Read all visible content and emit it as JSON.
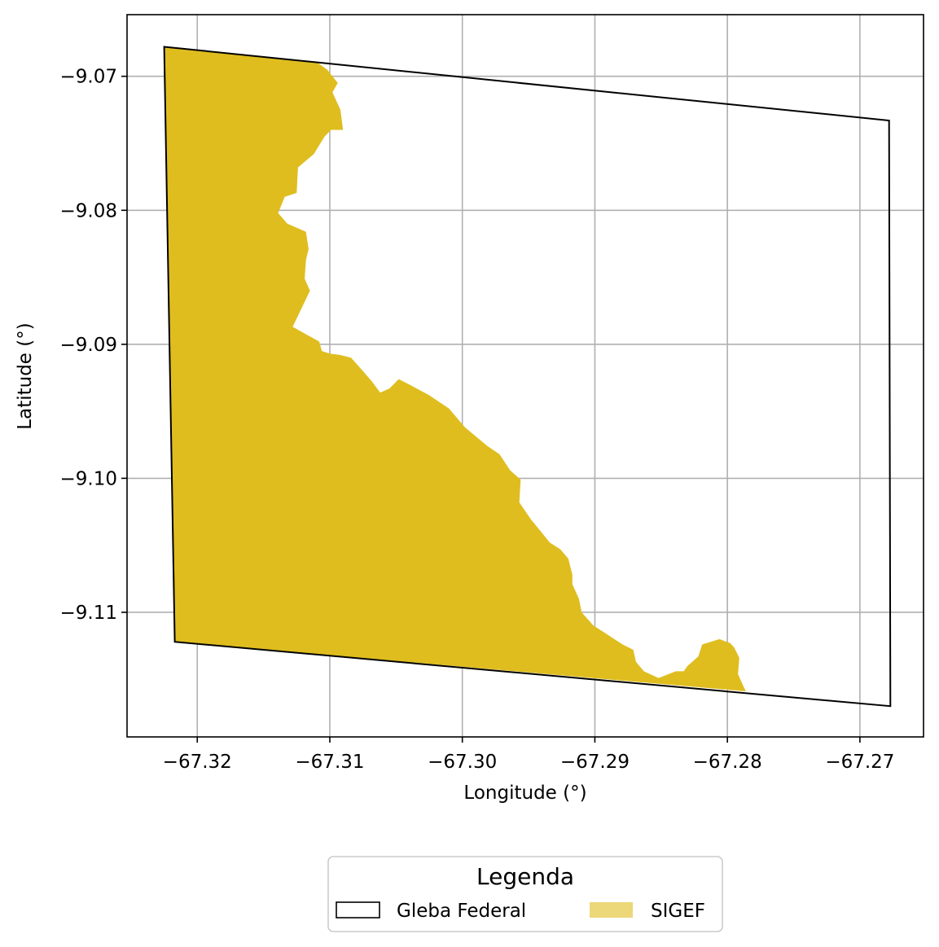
{
  "chart_data": {
    "type": "map",
    "xlabel": "Longitude (°)",
    "ylabel": "Latitude (°)",
    "xlim": [
      -67.3253,
      -67.2652
    ],
    "ylim": [
      -9.1193,
      -9.0654
    ],
    "xticks": [
      -67.32,
      -67.31,
      -67.3,
      -67.29,
      -67.28,
      -67.27
    ],
    "xtick_labels": [
      "−67.32",
      "−67.31",
      "−67.30",
      "−67.29",
      "−67.28",
      "−67.27"
    ],
    "yticks": [
      -9.07,
      -9.08,
      -9.09,
      -9.1,
      -9.11
    ],
    "ytick_labels": [
      "−9.07",
      "−9.08",
      "−9.09",
      "−9.10",
      "−9.11"
    ],
    "grid": true,
    "legend": {
      "title": "Legenda",
      "placement": "bottom-center, below plot",
      "entries": [
        {
          "label": "Gleba Federal",
          "style": "outline",
          "edge_color": "#000000"
        },
        {
          "label": "SIGEF",
          "style": "fill",
          "fill_color": "#DFBD1F"
        }
      ]
    },
    "layers": [
      {
        "name": "Gleba Federal",
        "type": "polygon",
        "edge_color": "#000000",
        "fill": "none",
        "coordinates": [
          [
            -67.3225,
            -9.0678
          ],
          [
            -67.2678,
            -9.0733
          ],
          [
            -67.2677,
            -9.117
          ],
          [
            -67.3217,
            -9.1122
          ]
        ]
      },
      {
        "name": "SIGEF",
        "type": "polygon",
        "fill_color": "#DFBD1F",
        "coordinates": [
          [
            -67.3225,
            -9.0678
          ],
          [
            -67.3109,
            -9.069
          ],
          [
            -67.3102,
            -9.0695
          ],
          [
            -67.3094,
            -9.0705
          ],
          [
            -67.3098,
            -9.0712
          ],
          [
            -67.3092,
            -9.0725
          ],
          [
            -67.309,
            -9.074
          ],
          [
            -67.3099,
            -9.074
          ],
          [
            -67.3104,
            -9.0745
          ],
          [
            -67.3112,
            -9.0758
          ],
          [
            -67.3124,
            -9.0768
          ],
          [
            -67.3125,
            -9.0787
          ],
          [
            -67.3134,
            -9.079
          ],
          [
            -67.3139,
            -9.0802
          ],
          [
            -67.3132,
            -9.081
          ],
          [
            -67.3118,
            -9.0816
          ],
          [
            -67.3116,
            -9.0829
          ],
          [
            -67.3118,
            -9.0837
          ],
          [
            -67.3119,
            -9.0851
          ],
          [
            -67.3115,
            -9.086
          ],
          [
            -67.3128,
            -9.0887
          ],
          [
            -67.3108,
            -9.0898
          ],
          [
            -67.3106,
            -9.0905
          ],
          [
            -67.31,
            -9.0907
          ],
          [
            -67.3092,
            -9.0908
          ],
          [
            -67.3084,
            -9.091
          ],
          [
            -67.3075,
            -9.092
          ],
          [
            -67.3068,
            -9.0928
          ],
          [
            -67.3062,
            -9.0936
          ],
          [
            -67.3055,
            -9.0933
          ],
          [
            -67.3048,
            -9.0926
          ],
          [
            -67.304,
            -9.093
          ],
          [
            -67.3025,
            -9.0938
          ],
          [
            -67.301,
            -9.0948
          ],
          [
            -67.2998,
            -9.0962
          ],
          [
            -67.2981,
            -9.0976
          ],
          [
            -67.2972,
            -9.0982
          ],
          [
            -67.2964,
            -9.0994
          ],
          [
            -67.2956,
            -9.1001
          ],
          [
            -67.2957,
            -9.1018
          ],
          [
            -67.2948,
            -9.1031
          ],
          [
            -67.2943,
            -9.1037
          ],
          [
            -67.2934,
            -9.1048
          ],
          [
            -67.2926,
            -9.1053
          ],
          [
            -67.292,
            -9.106
          ],
          [
            -67.2917,
            -9.1072
          ],
          [
            -67.2917,
            -9.1079
          ],
          [
            -67.2912,
            -9.109
          ],
          [
            -67.291,
            -9.11
          ],
          [
            -67.2901,
            -9.111
          ],
          [
            -67.2893,
            -9.1115
          ],
          [
            -67.2879,
            -9.1124
          ],
          [
            -67.2871,
            -9.1128
          ],
          [
            -67.2869,
            -9.1137
          ],
          [
            -67.2863,
            -9.1144
          ],
          [
            -67.2852,
            -9.1149
          ],
          [
            -67.2849,
            -9.1148
          ],
          [
            -67.2839,
            -9.1144
          ],
          [
            -67.2833,
            -9.1144
          ],
          [
            -67.283,
            -9.114
          ],
          [
            -67.2822,
            -9.1133
          ],
          [
            -67.2819,
            -9.1124
          ],
          [
            -67.2806,
            -9.112
          ],
          [
            -67.2798,
            -9.1123
          ],
          [
            -67.2795,
            -9.1126
          ],
          [
            -67.2791,
            -9.1134
          ],
          [
            -67.2792,
            -9.1146
          ],
          [
            -67.2788,
            -9.1155
          ],
          [
            -67.2786,
            -9.1159
          ],
          [
            -67.3217,
            -9.1122
          ]
        ]
      }
    ]
  }
}
